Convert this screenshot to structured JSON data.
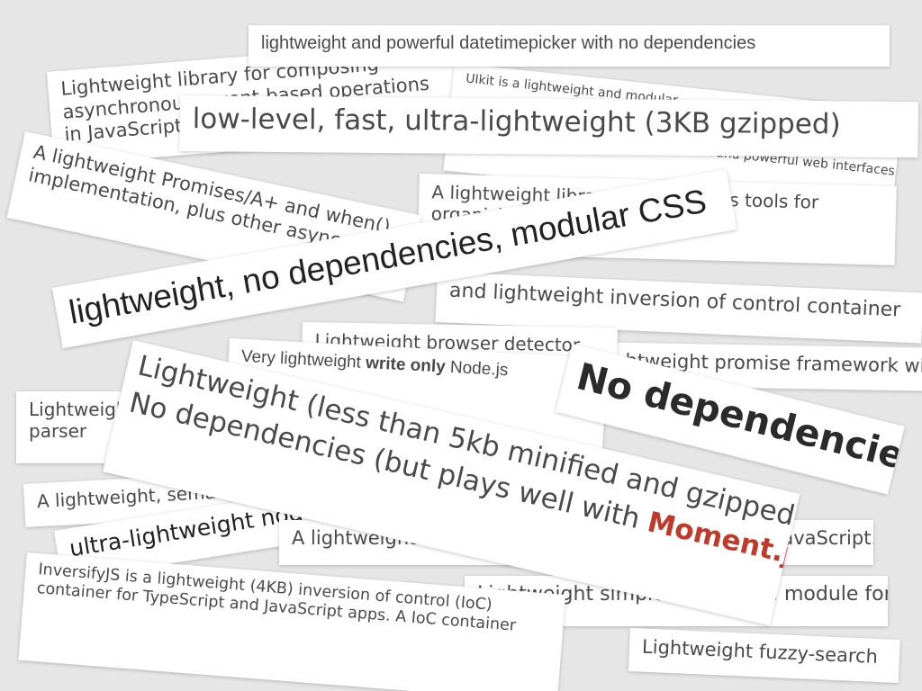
{
  "cards": {
    "datetimepicker": "lightweight and powerful datetimepicker with no dependencies",
    "composing_line1": "Lightweight library for composing",
    "composing_line2": "asynchronous, event-based operations",
    "composing_line3": "in JavaScript",
    "uikit_line1": "UIkit is a lightweight and modular",
    "uikit_line2": "front-end framework for developing fast and powerful web interfaces.",
    "lowlevel": "low-level, fast, ultra-lightweight (3KB gzipped)",
    "promises_line1": "A lightweight Promises/A+ and when()",
    "promises_line2": "implementation, plus other async goodies.",
    "organizing_line1": "A lightweight library that provides tools for",
    "organizing_line2": "organizing asynchronous code",
    "modular_css": "lightweight, no dependencies, modular CSS",
    "inversion": "and lightweight inversion of control container",
    "browser_detector": "Lightweight browser detector",
    "promise_framework": "Lightweight promise framework with",
    "write_only_prefix": "Very lightweight",
    "write_only_bold": "write only",
    "write_only_suffix": "Node.js",
    "parser_line1": "Lightweight",
    "parser_line2": "parser",
    "less_than_line1": "Lightweight (less than 5kb minified and gzipped)",
    "less_than_line2_prefix": "No dependencies (but plays well with",
    "less_than_line2_accent": "Moment.js",
    "less_than_line2_suffix": ")",
    "no_dependencies": "No dependencies",
    "semantic_grid": "A lightweight, semantic grid framework",
    "ultra_node": "ultra-lightweight node.js",
    "toolset_prefix": "A lightweight toolset for writing",
    "toolset_suffix": "JavaScript. ✨",
    "inversify_line1": "InversifyJS is a lightweight (4KB) inversion of control (IoC)",
    "inversify_line2": "container for TypeScript and JavaScript apps. A IoC container",
    "translation": "Lightweight simple translation module for",
    "fuzzy": "Lightweight fuzzy-search"
  },
  "colors": {
    "background": "#e6e6e6",
    "card": "#ffffff",
    "text": "#4a4a4a",
    "accent": "#c0392b"
  }
}
